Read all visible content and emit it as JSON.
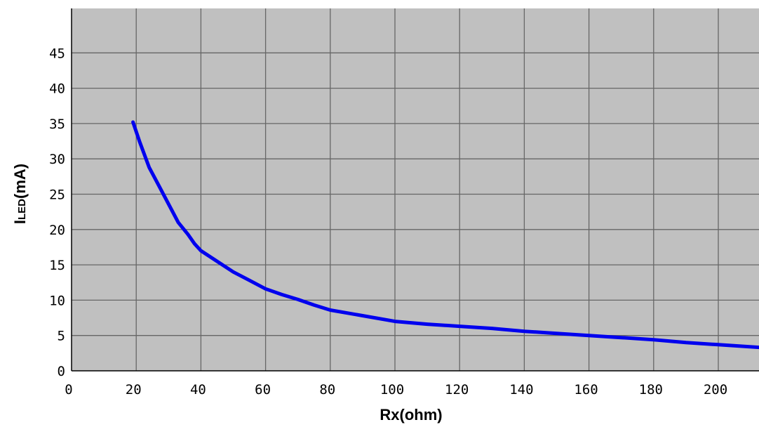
{
  "chart_data": {
    "type": "line",
    "xlabel": "Rx(ohm)",
    "ylabel": {
      "main": "I",
      "subscript": "LED",
      "unit": "(mA)"
    },
    "xlim": [
      0,
      213
    ],
    "ylim": [
      0,
      50
    ],
    "x_ticks": [
      0,
      20,
      40,
      60,
      80,
      100,
      120,
      140,
      160,
      180,
      200
    ],
    "y_ticks": [
      0,
      5,
      10,
      15,
      20,
      25,
      30,
      35,
      40,
      45
    ],
    "grid": true,
    "series": [
      {
        "color": "#0000ee",
        "points": [
          [
            19,
            35.2
          ],
          [
            21,
            32.5
          ],
          [
            24,
            28.8
          ],
          [
            27,
            26.2
          ],
          [
            30,
            23.6
          ],
          [
            33,
            21.0
          ],
          [
            36,
            19.3
          ],
          [
            38,
            18.0
          ],
          [
            40,
            17.0
          ],
          [
            45,
            15.5
          ],
          [
            50,
            14.0
          ],
          [
            55,
            12.8
          ],
          [
            60,
            11.6
          ],
          [
            65,
            10.8
          ],
          [
            70,
            10.1
          ],
          [
            75,
            9.3
          ],
          [
            80,
            8.6
          ],
          [
            90,
            7.8
          ],
          [
            100,
            7.0
          ],
          [
            110,
            6.6
          ],
          [
            120,
            6.3
          ],
          [
            130,
            6.0
          ],
          [
            140,
            5.6
          ],
          [
            150,
            5.3
          ],
          [
            160,
            5.0
          ],
          [
            170,
            4.7
          ],
          [
            180,
            4.4
          ],
          [
            190,
            4.0
          ],
          [
            200,
            3.7
          ],
          [
            213,
            3.3
          ]
        ]
      }
    ]
  },
  "colors": {
    "plot_background": "#c0c0c0",
    "grid": "#666666",
    "axis": "#000000",
    "line": "#0000ee"
  }
}
